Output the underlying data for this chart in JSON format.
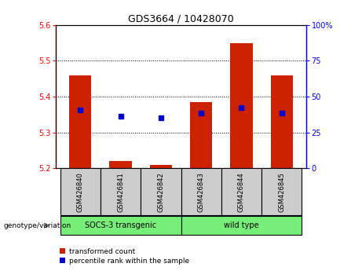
{
  "title": "GDS3664 / 10428070",
  "samples": [
    "GSM426840",
    "GSM426841",
    "GSM426842",
    "GSM426843",
    "GSM426844",
    "GSM426845"
  ],
  "bar_base": 5.2,
  "bar_tops": [
    5.46,
    5.22,
    5.21,
    5.385,
    5.55,
    5.46
  ],
  "blue_y": [
    5.362,
    5.345,
    5.34,
    5.355,
    5.37,
    5.355
  ],
  "ylim_left": [
    5.2,
    5.6
  ],
  "ylim_right": [
    0,
    100
  ],
  "yticks_left": [
    5.2,
    5.3,
    5.4,
    5.5,
    5.6
  ],
  "yticks_right": [
    0,
    25,
    50,
    75,
    100
  ],
  "bar_color": "#cc2200",
  "blue_color": "#0000cc",
  "group1_label": "SOCS-3 transgenic",
  "group2_label": "wild type",
  "group_bg": "#77ee77",
  "sample_bg": "#cccccc",
  "legend_red_label": "transformed count",
  "legend_blue_label": "percentile rank within the sample",
  "genotype_label": "genotype/variation",
  "bar_width": 0.55,
  "title_fontsize": 9,
  "axis_fontsize": 7,
  "label_fontsize": 7,
  "group_fontsize": 8
}
